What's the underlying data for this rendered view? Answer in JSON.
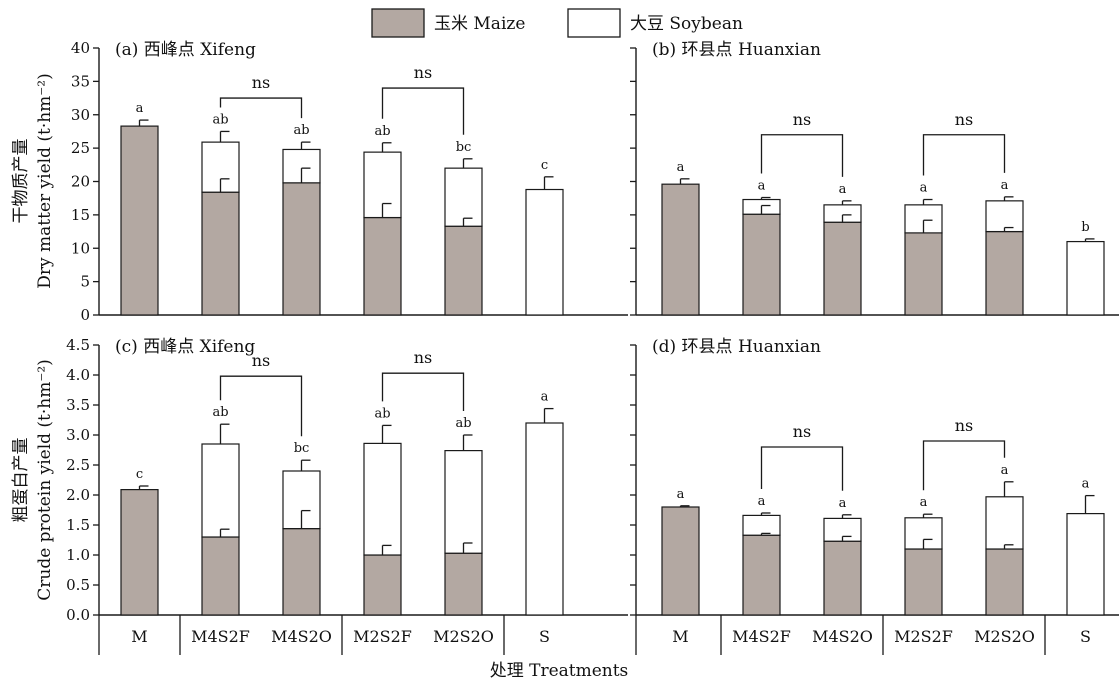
{
  "colors": {
    "maize": "#b3a8a2",
    "soybean": "#ffffff",
    "stroke": "#1a1a1a"
  },
  "legend": {
    "maize": "玉米 Maize",
    "soybean": "大豆 Soybean"
  },
  "xlabel": "处理 Treatments",
  "categories": [
    "M",
    "M4S2F",
    "M4S2O",
    "M2S2F",
    "M2S2O",
    "S"
  ],
  "chart_data": [
    {
      "type": "bar",
      "stacked": true,
      "title": "(a) 西峰点 Xifeng",
      "ylabel_cn": "干物质产量",
      "ylabel_en": "Dry matter yield (t·hm⁻²)",
      "ylim": [
        0,
        40
      ],
      "yticks": [
        0,
        5,
        10,
        15,
        20,
        25,
        30,
        35,
        40
      ],
      "categories": [
        "M",
        "M4S2F",
        "M4S2O",
        "M2S2F",
        "M2S2O",
        "S"
      ],
      "maize": [
        28.3,
        18.4,
        19.8,
        14.6,
        13.3,
        0
      ],
      "soybean": [
        0,
        7.5,
        5.0,
        9.8,
        8.7,
        18.8
      ],
      "maize_err": [
        0,
        2.0,
        2.2,
        2.1,
        1.2,
        0
      ],
      "total_err": [
        0.9,
        1.6,
        1.1,
        1.4,
        1.4,
        1.9
      ],
      "letters": [
        "a",
        "ab",
        "ab",
        "ab",
        "bc",
        "c"
      ],
      "ns_pairs": [
        [
          1,
          2,
          32.5
        ],
        [
          3,
          4,
          34.0
        ]
      ],
      "ns_label": "ns"
    },
    {
      "type": "bar",
      "stacked": true,
      "title": "(b) 环县点 Huanxian",
      "ylim": [
        0,
        40
      ],
      "categories": [
        "M",
        "M4S2F",
        "M4S2O",
        "M2S2F",
        "M2S2O",
        "S"
      ],
      "maize": [
        19.6,
        15.1,
        13.9,
        12.3,
        12.5,
        0
      ],
      "soybean": [
        0,
        2.2,
        2.6,
        4.2,
        4.6,
        11.0
      ],
      "maize_err": [
        0,
        1.3,
        1.1,
        1.9,
        0.6,
        0
      ],
      "total_err": [
        0.8,
        0.3,
        0.6,
        0.8,
        0.6,
        0.4
      ],
      "letters": [
        "a",
        "a",
        "a",
        "a",
        "a",
        "b"
      ],
      "ns_pairs": [
        [
          1,
          2,
          27.0
        ],
        [
          3,
          4,
          27.0
        ]
      ],
      "ns_label": "ns"
    },
    {
      "type": "bar",
      "stacked": true,
      "title": "(c) 西峰点 Xifeng",
      "ylabel_cn": "粗蛋白产量",
      "ylabel_en": "Crude protein yield (t·hm⁻²)",
      "ylim": [
        0,
        4.5
      ],
      "yticks": [
        0.0,
        0.5,
        1.0,
        1.5,
        2.0,
        2.5,
        3.0,
        3.5,
        4.0,
        4.5
      ],
      "categories": [
        "M",
        "M4S2F",
        "M4S2O",
        "M2S2F",
        "M2S2O",
        "S"
      ],
      "maize": [
        2.09,
        1.3,
        1.44,
        1.0,
        1.03,
        0
      ],
      "soybean": [
        0,
        1.55,
        0.96,
        1.86,
        1.71,
        3.2
      ],
      "maize_err": [
        0,
        0.13,
        0.3,
        0.16,
        0.17,
        0
      ],
      "total_err": [
        0.06,
        0.33,
        0.18,
        0.3,
        0.26,
        0.24
      ],
      "letters": [
        "c",
        "ab",
        "bc",
        "ab",
        "ab",
        "a"
      ],
      "ns_pairs": [
        [
          1,
          2,
          3.98
        ],
        [
          3,
          4,
          4.03
        ]
      ],
      "ns_label": "ns"
    },
    {
      "type": "bar",
      "stacked": true,
      "title": "(d) 环县点 Huanxian",
      "ylim": [
        0,
        4.5
      ],
      "categories": [
        "M",
        "M4S2F",
        "M4S2O",
        "M2S2F",
        "M2S2O",
        "S"
      ],
      "maize": [
        1.8,
        1.33,
        1.23,
        1.1,
        1.1,
        0
      ],
      "soybean": [
        0,
        0.33,
        0.38,
        0.52,
        0.87,
        1.69
      ],
      "maize_err": [
        0,
        0.03,
        0.08,
        0.16,
        0.07,
        0
      ],
      "total_err": [
        0.02,
        0.04,
        0.06,
        0.06,
        0.25,
        0.3
      ],
      "letters": [
        "a",
        "a",
        "a",
        "a",
        "a",
        "a"
      ],
      "ns_pairs": [
        [
          1,
          2,
          2.8
        ],
        [
          3,
          4,
          2.9
        ]
      ],
      "ns_label": "ns"
    }
  ]
}
